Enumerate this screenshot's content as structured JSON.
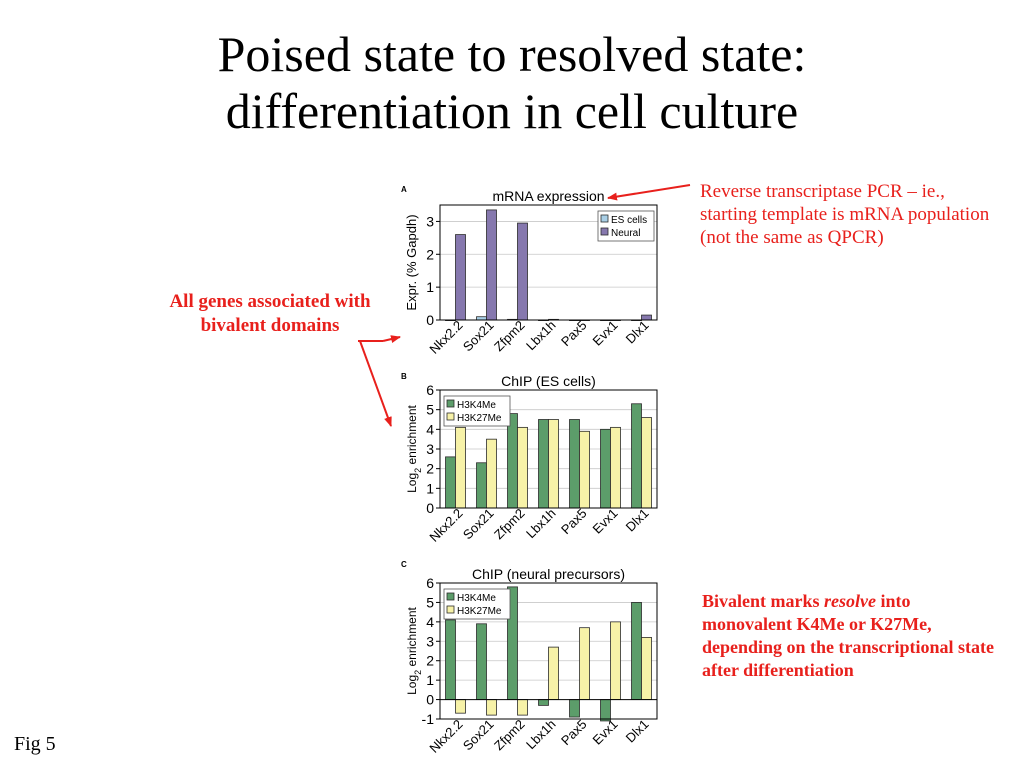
{
  "slide": {
    "title_line1": "Poised state to resolved state:",
    "title_line2": "differentiation in cell culture",
    "note_rtpcr": "Reverse transcriptase PCR – ie., starting template is mRNA population (not the same as QPCR)",
    "note_bivalent_genes": "All genes associated with bivalent domains",
    "note_resolve_pre": "Bivalent marks ",
    "note_resolve_em": "resolve",
    "note_resolve_post": " into monovalent K4Me or K27Me, depending on the transcriptional state after differentiation",
    "fig_label": "Fig 5",
    "accent_color": "#e8201c"
  },
  "chart_data": [
    {
      "panel": "A",
      "type": "bar",
      "title": "mRNA expression",
      "ylabel": "Expr. (% Gapdh)",
      "ylim": [
        0,
        3.5
      ],
      "yticks": [
        0,
        1,
        2,
        3
      ],
      "categories": [
        "Nkx2.2",
        "Sox21",
        "Zfpm2",
        "Lbx1h",
        "Pax5",
        "Evx1",
        "Dlx1"
      ],
      "legend_position": "top-right",
      "series": [
        {
          "name": "ES cells",
          "color": "#a9cfe6",
          "values": [
            0.0,
            0.1,
            0.02,
            0.0,
            0.0,
            0.0,
            0.0
          ]
        },
        {
          "name": "Neural",
          "color": "#8678ae",
          "values": [
            2.6,
            3.35,
            2.95,
            0.02,
            0.0,
            0.0,
            0.15
          ]
        }
      ]
    },
    {
      "panel": "B",
      "type": "bar",
      "title": "ChIP (ES cells)",
      "ylabel": "Log2 enrichment",
      "ylim": [
        0,
        6
      ],
      "yticks": [
        0,
        1,
        2,
        3,
        4,
        5,
        6
      ],
      "categories": [
        "Nkx2.2",
        "Sox21",
        "Zfpm2",
        "Lbx1h",
        "Pax5",
        "Evx1",
        "Dlx1"
      ],
      "legend_position": "top-left",
      "series": [
        {
          "name": "H3K4Me",
          "color": "#5c9d6a",
          "values": [
            2.6,
            2.3,
            4.8,
            4.5,
            4.5,
            4.0,
            5.3
          ]
        },
        {
          "name": "H3K27Me",
          "color": "#f7f2a8",
          "values": [
            4.1,
            3.5,
            4.1,
            4.5,
            3.9,
            4.1,
            4.6
          ]
        }
      ]
    },
    {
      "panel": "C",
      "type": "bar",
      "title": "ChIP (neural precursors)",
      "ylabel": "Log2 enrichment",
      "ylim": [
        -1,
        6
      ],
      "yticks": [
        -1,
        0,
        1,
        2,
        3,
        4,
        5,
        6
      ],
      "categories": [
        "Nkx2.2",
        "Sox21",
        "Zfpm2",
        "Lbx1h",
        "Pax5",
        "Evx1",
        "Dlx1"
      ],
      "legend_position": "top-left",
      "series": [
        {
          "name": "H3K4Me",
          "color": "#5c9d6a",
          "values": [
            4.1,
            3.9,
            5.8,
            -0.3,
            -0.9,
            -1.1,
            5.0
          ]
        },
        {
          "name": "H3K27Me",
          "color": "#f7f2a8",
          "values": [
            -0.7,
            -0.8,
            -0.8,
            2.7,
            3.7,
            4.0,
            3.2
          ]
        }
      ]
    }
  ]
}
